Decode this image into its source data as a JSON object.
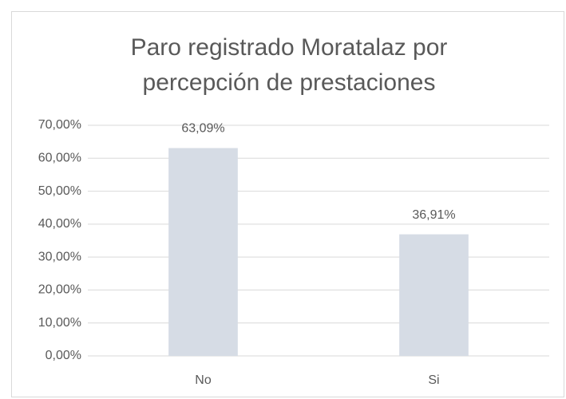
{
  "chart_data": {
    "type": "bar",
    "title": [
      "Paro registrado Moratalaz por",
      "percepción de prestaciones"
    ],
    "categories": [
      "No",
      "Si"
    ],
    "values": [
      63.09,
      36.91
    ],
    "value_labels": [
      "63,09%",
      "36,91%"
    ],
    "color": "#d6dce5",
    "ylim": [
      0,
      70
    ],
    "yticks": [
      {
        "value": 0,
        "label": "0,00%"
      },
      {
        "value": 10,
        "label": "10,00%"
      },
      {
        "value": 20,
        "label": "20,00%"
      },
      {
        "value": 30,
        "label": "30,00%"
      },
      {
        "value": 40,
        "label": "40,00%"
      },
      {
        "value": 50,
        "label": "50,00%"
      },
      {
        "value": 60,
        "label": "60,00%"
      },
      {
        "value": 70,
        "label": "70,00%"
      }
    ],
    "grid": true
  }
}
